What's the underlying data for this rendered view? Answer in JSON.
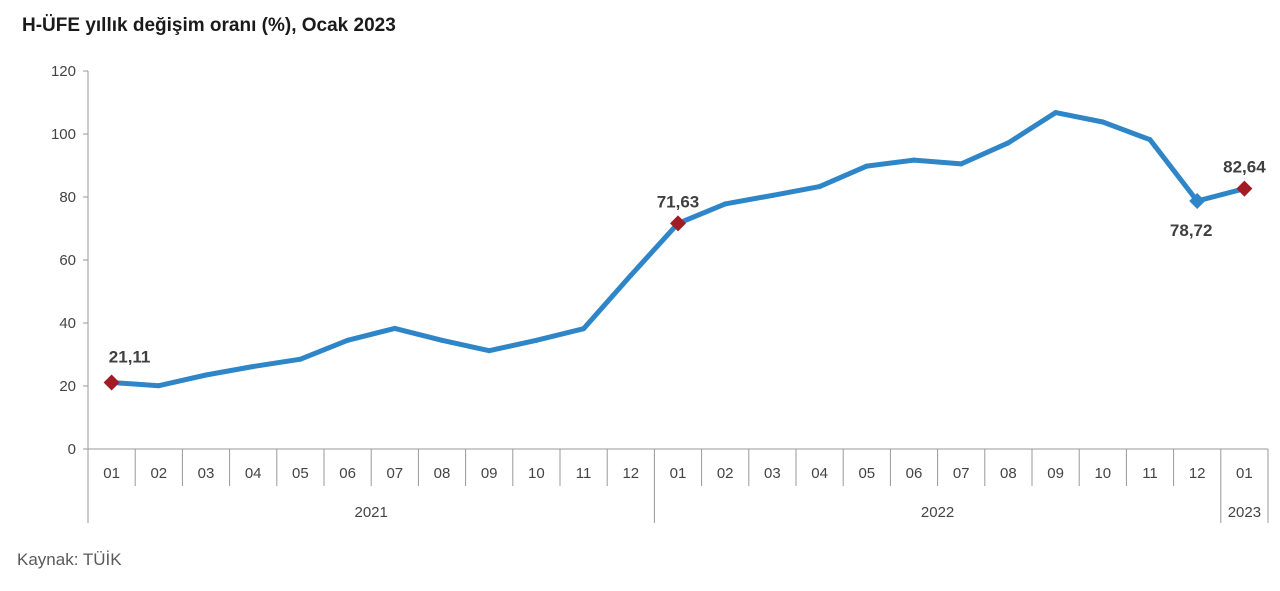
{
  "title": "H-ÜFE yıllık değişim oranı (%), Ocak 2023",
  "source": "Kaynak: TÜİK",
  "chart_data": {
    "type": "line",
    "title": "H-ÜFE yıllık değişim oranı (%), Ocak 2023",
    "xlabel": "",
    "ylabel": "",
    "ylim": [
      0,
      120
    ],
    "yticks": [
      "0",
      "20",
      "40",
      "60",
      "80",
      "100",
      "120"
    ],
    "grid": false,
    "legend": "none",
    "color": "#2e86c8",
    "marker_color": "#a11c24",
    "categories": [
      "01",
      "02",
      "03",
      "04",
      "05",
      "06",
      "07",
      "08",
      "09",
      "10",
      "11",
      "12",
      "01",
      "02",
      "03",
      "04",
      "05",
      "06",
      "07",
      "08",
      "09",
      "10",
      "11",
      "12",
      "01"
    ],
    "years": [
      {
        "label": "2021",
        "count": 12
      },
      {
        "label": "2022",
        "count": 12
      },
      {
        "label": "2023",
        "count": 1
      }
    ],
    "series": [
      {
        "values": [
          21.11,
          20.1,
          23.5,
          26.2,
          28.5,
          34.5,
          38.3,
          34.5,
          31.2,
          34.5,
          38.2,
          55.1,
          71.63,
          77.8,
          80.5,
          83.3,
          89.8,
          91.7,
          90.5,
          97.2,
          106.8,
          103.8,
          98.2,
          78.72,
          82.64
        ]
      }
    ],
    "annotations": [
      {
        "index": 0,
        "value": 21.11,
        "text": "21,11",
        "marker": "diamond-red"
      },
      {
        "index": 12,
        "value": 71.63,
        "text": "71,63",
        "marker": "diamond-red"
      },
      {
        "index": 23,
        "value": 78.72,
        "text": "78,72",
        "marker": "diamond-blue"
      },
      {
        "index": 24,
        "value": 82.64,
        "text": "82,64",
        "marker": "diamond-red"
      }
    ]
  }
}
